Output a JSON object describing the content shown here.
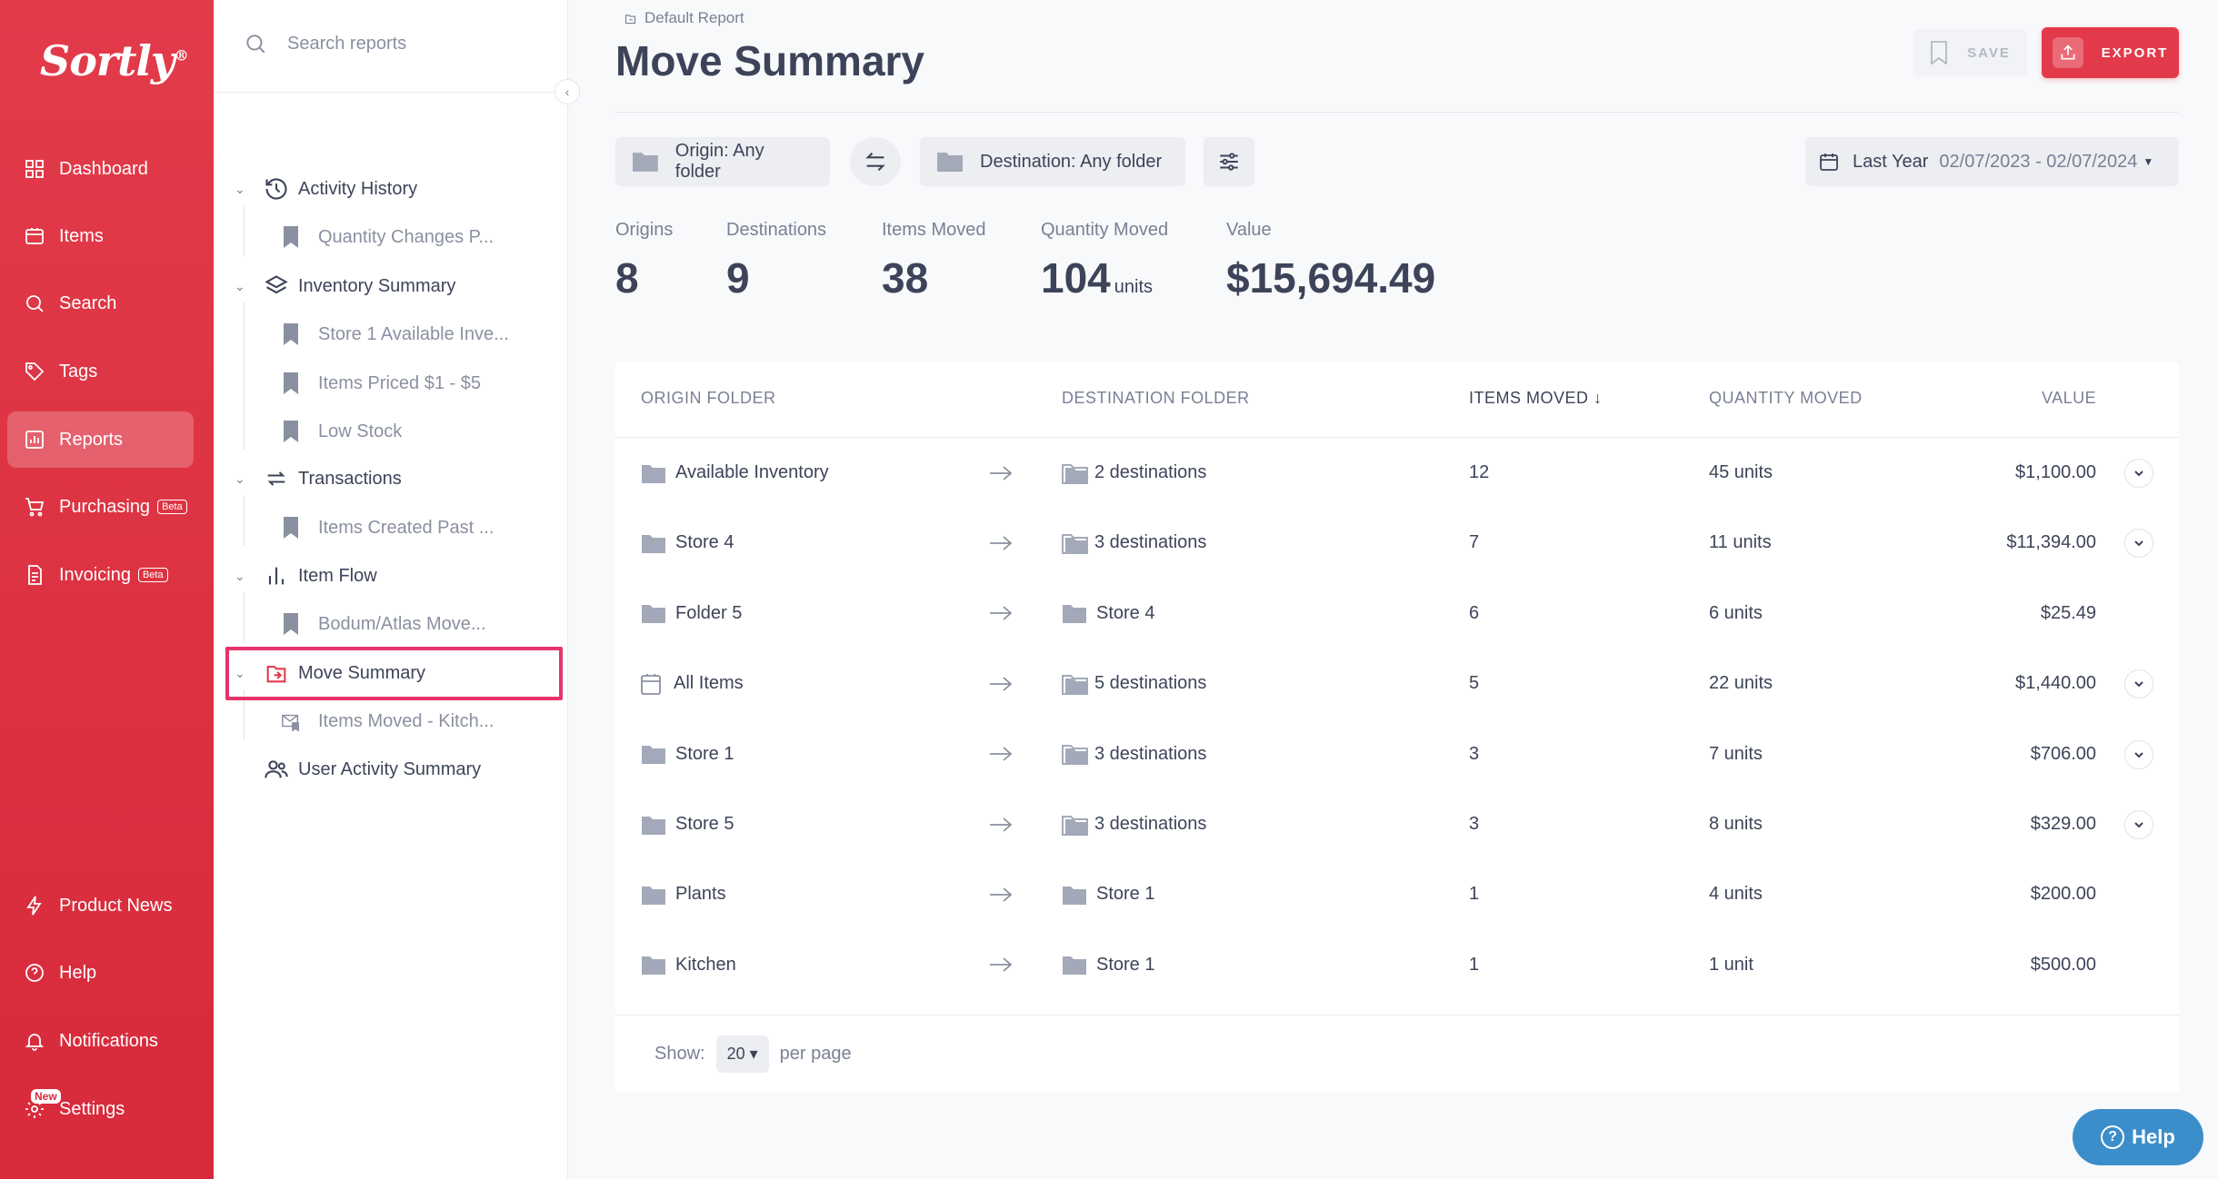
{
  "brand": {
    "logo": "Sortly",
    "reg": "®"
  },
  "nav": {
    "items": [
      {
        "label": "Dashboard"
      },
      {
        "label": "Items"
      },
      {
        "label": "Search"
      },
      {
        "label": "Tags"
      },
      {
        "label": "Reports"
      },
      {
        "label": "Purchasing",
        "badge": "Beta"
      },
      {
        "label": "Invoicing",
        "badge": "Beta"
      }
    ],
    "bottom": [
      {
        "label": "Product News"
      },
      {
        "label": "Help"
      },
      {
        "label": "Notifications"
      },
      {
        "label": "Settings",
        "badge": "New"
      }
    ]
  },
  "sidebar": {
    "search_placeholder": "Search reports",
    "tree": [
      {
        "label": "Activity History",
        "children": [
          "Quantity Changes P..."
        ]
      },
      {
        "label": "Inventory Summary",
        "children": [
          "Store 1 Available Inve...",
          "Items Priced $1 - $5",
          "Low Stock"
        ]
      },
      {
        "label": "Transactions",
        "children": [
          "Items Created Past ..."
        ]
      },
      {
        "label": "Item Flow",
        "children": [
          "Bodum/Atlas Move..."
        ]
      },
      {
        "label": "Move Summary",
        "children": [
          "Items Moved - Kitch..."
        ]
      },
      {
        "label": "User Activity Summary",
        "children": []
      }
    ]
  },
  "header": {
    "breadcrumb": "Default Report",
    "title": "Move Summary",
    "save_label": "SAVE",
    "export_label": "EXPORT"
  },
  "filters": {
    "origin": "Origin: Any folder",
    "destination": "Destination: Any folder",
    "period": "Last Year",
    "date_range": "02/07/2023 - 02/07/2024"
  },
  "stats": {
    "origins": {
      "label": "Origins",
      "value": "8"
    },
    "destinations": {
      "label": "Destinations",
      "value": "9"
    },
    "items_moved": {
      "label": "Items Moved",
      "value": "38"
    },
    "quantity_moved": {
      "label": "Quantity Moved",
      "value": "104",
      "unit": "units"
    },
    "value": {
      "label": "Value",
      "value": "$15,694.49"
    }
  },
  "table": {
    "headers": [
      "ORIGIN FOLDER",
      "DESTINATION FOLDER",
      "ITEMS MOVED",
      "QUANTITY MOVED",
      "VALUE"
    ],
    "rows": [
      {
        "origin": "Available Inventory",
        "destination": "2 destinations",
        "items": "12",
        "qty": "45 units",
        "value": "$1,100.00"
      },
      {
        "origin": "Store 4",
        "destination": "3 destinations",
        "items": "7",
        "qty": "11 units",
        "value": "$11,394.00"
      },
      {
        "origin": "Folder 5",
        "destination": "Store 4",
        "items": "6",
        "qty": "6 units",
        "value": "$25.49"
      },
      {
        "origin": "All Items",
        "destination": "5 destinations",
        "items": "5",
        "qty": "22 units",
        "value": "$1,440.00"
      },
      {
        "origin": "Store 1",
        "destination": "3 destinations",
        "items": "3",
        "qty": "7 units",
        "value": "$706.00"
      },
      {
        "origin": "Store 5",
        "destination": "3 destinations",
        "items": "3",
        "qty": "8 units",
        "value": "$329.00"
      },
      {
        "origin": "Plants",
        "destination": "Store 1",
        "items": "1",
        "qty": "4 units",
        "value": "$200.00"
      },
      {
        "origin": "Kitchen",
        "destination": "Store 1",
        "items": "1",
        "qty": "1 unit",
        "value": "$500.00"
      }
    ],
    "show_label": "Show:",
    "per_page_value": "20",
    "per_page_label": "per page"
  },
  "help_button": "Help",
  "colors": {
    "brand_red": "#e23b4a",
    "highlight": "#e8336b",
    "help_blue": "#3b8ec9"
  }
}
